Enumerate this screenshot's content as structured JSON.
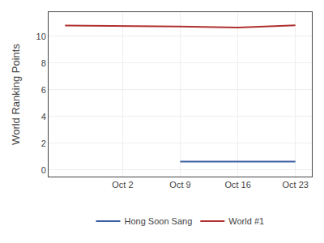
{
  "chart_data": {
    "type": "line",
    "x": [
      0,
      7,
      14,
      21,
      28
    ],
    "series": [
      {
        "name": "Hong Soon Sang",
        "color": "#3c5fa0",
        "values": [
          null,
          null,
          0.62,
          0.62,
          0.62
        ]
      },
      {
        "name": "World #1",
        "color": "#b03030",
        "values": [
          10.8,
          10.78,
          10.72,
          10.65,
          10.82
        ]
      }
    ],
    "xlim": [
      -2,
      30
    ],
    "xticks": [
      {
        "value": 7,
        "label": "Oct 2"
      },
      {
        "value": 14,
        "label": "Oct 9"
      },
      {
        "value": 21,
        "label": "Oct 16"
      },
      {
        "value": 28,
        "label": "Oct 23"
      }
    ],
    "ylabel": "World Ranking Points",
    "ylim": [
      -0.5,
      11.8
    ],
    "yticks": [
      0,
      2,
      4,
      6,
      8,
      10
    ],
    "grid": true,
    "legend": "bottom"
  }
}
